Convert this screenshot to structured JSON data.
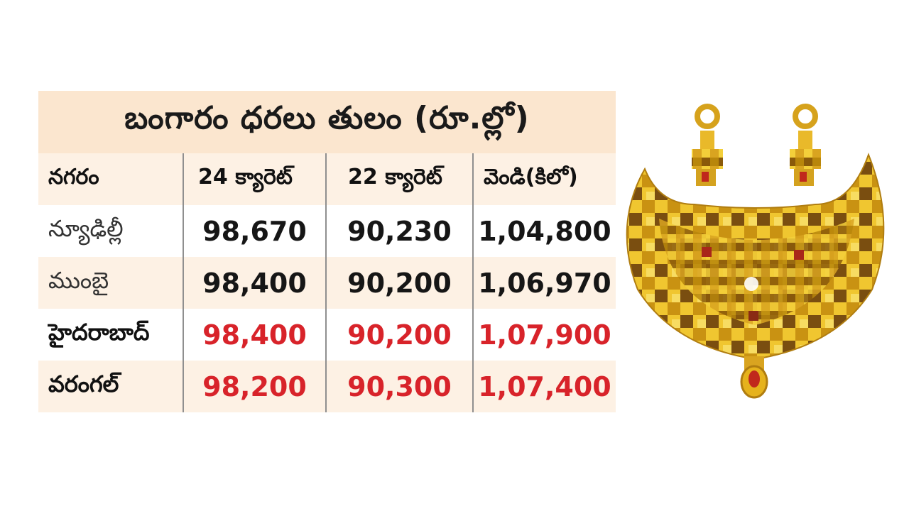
{
  "title": "బంగారం ధరలు తులం (రూ.ల్లో)",
  "columns": [
    "నగరం",
    "24 క్యారెట్",
    "22 క్యారెట్",
    "వెండి(కిలో)"
  ],
  "rows": [
    {
      "city": "న్యూఢిల్లీ",
      "k24": "98,670",
      "k22": "90,230",
      "silver": "1,04,800",
      "highlight": false
    },
    {
      "city": "ముంబై",
      "k24": "98,400",
      "k22": "90,200",
      "silver": "1,06,970",
      "highlight": false
    },
    {
      "city": "హైదరాబాద్",
      "k24": "98,400",
      "k22": "90,200",
      "silver": "1,07,900",
      "highlight": true
    },
    {
      "city": "వరంగల్",
      "k24": "98,200",
      "k22": "90,300",
      "silver": "1,07,400",
      "highlight": true
    }
  ],
  "colors": {
    "title_bg": "#fbe6cf",
    "row_tint": "#fdf1e4",
    "highlight_red": "#d8232a",
    "divider": "#8f8f8f"
  },
  "image": {
    "icon": "gold-necklace-icon"
  }
}
